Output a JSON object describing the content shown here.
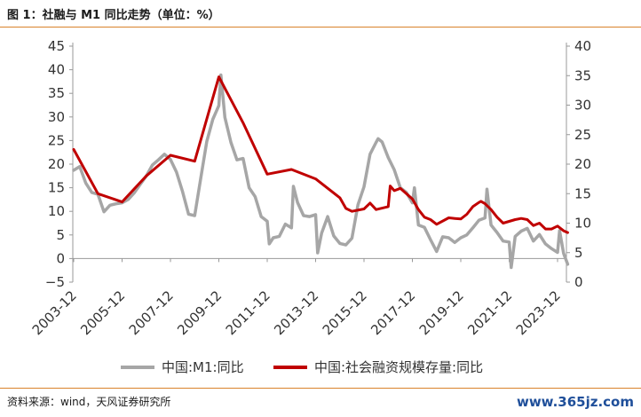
{
  "header": {
    "title": "图 1：社融与 M1 同比走势（单位：%）"
  },
  "footer": {
    "source": "资料来源：wind，天风证券研究所",
    "watermark": "www.365jz.com"
  },
  "chart_data": {
    "type": "line",
    "title": "图 1：社融与 M1 同比走势（单位：%）",
    "x_tick_labels": [
      "2003-12",
      "2005-12",
      "2007-12",
      "2009-12",
      "2011-12",
      "2013-12",
      "2015-12",
      "2017-12",
      "2019-12",
      "2021-12",
      "2023-12"
    ],
    "y_left": {
      "ylim": [
        -5,
        45
      ],
      "ticks": [
        -5,
        0,
        5,
        10,
        15,
        20,
        25,
        30,
        35,
        40,
        45
      ],
      "tick_labels": [
        "−5",
        "0",
        "5",
        "10",
        "15",
        "20",
        "25",
        "30",
        "35",
        "40",
        "45"
      ]
    },
    "y_right": {
      "ylim": [
        0,
        40
      ],
      "ticks": [
        0,
        5,
        10,
        15,
        20,
        25,
        30,
        35,
        40
      ],
      "tick_labels": [
        "0",
        "5",
        "10",
        "15",
        "20",
        "25",
        "30",
        "35",
        "40"
      ]
    },
    "legend": {
      "placement": "bottom"
    },
    "series": [
      {
        "name": "中国:M1:同比",
        "axis": "left",
        "color": "#a6a6a6",
        "points": [
          [
            "2003-12",
            18.7
          ],
          [
            "2004-03",
            19.5
          ],
          [
            "2004-06",
            16.0
          ],
          [
            "2004-09",
            14.0
          ],
          [
            "2004-12",
            13.6
          ],
          [
            "2005-03",
            9.9
          ],
          [
            "2005-06",
            11.3
          ],
          [
            "2005-09",
            11.6
          ],
          [
            "2005-12",
            11.8
          ],
          [
            "2006-03",
            12.5
          ],
          [
            "2006-06",
            13.9
          ],
          [
            "2006-09",
            15.7
          ],
          [
            "2006-12",
            17.5
          ],
          [
            "2007-03",
            19.8
          ],
          [
            "2007-06",
            20.9
          ],
          [
            "2007-09",
            22.1
          ],
          [
            "2007-12",
            21.0
          ],
          [
            "2008-03",
            18.3
          ],
          [
            "2008-06",
            14.2
          ],
          [
            "2008-09",
            9.4
          ],
          [
            "2008-12",
            9.1
          ],
          [
            "2009-03",
            17.0
          ],
          [
            "2009-06",
            24.8
          ],
          [
            "2009-09",
            29.5
          ],
          [
            "2009-12",
            32.4
          ],
          [
            "2010-01",
            38.9
          ],
          [
            "2010-03",
            29.9
          ],
          [
            "2010-06",
            24.6
          ],
          [
            "2010-09",
            20.9
          ],
          [
            "2010-12",
            21.2
          ],
          [
            "2011-03",
            15.0
          ],
          [
            "2011-06",
            13.1
          ],
          [
            "2011-09",
            8.9
          ],
          [
            "2011-12",
            7.9
          ],
          [
            "2012-01",
            3.1
          ],
          [
            "2012-03",
            4.4
          ],
          [
            "2012-06",
            4.7
          ],
          [
            "2012-09",
            7.3
          ],
          [
            "2012-12",
            6.5
          ],
          [
            "2013-01",
            15.3
          ],
          [
            "2013-03",
            11.9
          ],
          [
            "2013-06",
            9.1
          ],
          [
            "2013-09",
            8.9
          ],
          [
            "2013-12",
            9.3
          ],
          [
            "2014-01",
            1.2
          ],
          [
            "2014-03",
            5.4
          ],
          [
            "2014-06",
            8.9
          ],
          [
            "2014-09",
            4.8
          ],
          [
            "2014-12",
            3.2
          ],
          [
            "2015-03",
            2.9
          ],
          [
            "2015-06",
            4.3
          ],
          [
            "2015-09",
            11.4
          ],
          [
            "2015-12",
            15.2
          ],
          [
            "2016-03",
            22.1
          ],
          [
            "2016-06",
            24.6
          ],
          [
            "2016-07",
            25.4
          ],
          [
            "2016-09",
            24.7
          ],
          [
            "2016-12",
            21.4
          ],
          [
            "2017-03",
            18.8
          ],
          [
            "2017-06",
            15.0
          ],
          [
            "2017-09",
            14.0
          ],
          [
            "2017-12",
            11.8
          ],
          [
            "2018-01",
            15.0
          ],
          [
            "2018-03",
            7.1
          ],
          [
            "2018-06",
            6.6
          ],
          [
            "2018-09",
            4.0
          ],
          [
            "2018-12",
            1.5
          ],
          [
            "2019-03",
            4.6
          ],
          [
            "2019-06",
            4.4
          ],
          [
            "2019-09",
            3.4
          ],
          [
            "2019-12",
            4.4
          ],
          [
            "2020-03",
            5.0
          ],
          [
            "2020-06",
            6.5
          ],
          [
            "2020-09",
            8.1
          ],
          [
            "2020-12",
            8.6
          ],
          [
            "2021-01",
            14.7
          ],
          [
            "2021-03",
            7.1
          ],
          [
            "2021-06",
            5.5
          ],
          [
            "2021-09",
            3.7
          ],
          [
            "2021-12",
            3.5
          ],
          [
            "2022-01",
            -1.9
          ],
          [
            "2022-03",
            4.7
          ],
          [
            "2022-06",
            5.8
          ],
          [
            "2022-09",
            6.4
          ],
          [
            "2022-12",
            3.7
          ],
          [
            "2023-03",
            5.1
          ],
          [
            "2023-06",
            3.1
          ],
          [
            "2023-09",
            2.1
          ],
          [
            "2023-12",
            1.3
          ],
          [
            "2024-01",
            5.9
          ],
          [
            "2024-03",
            1.1
          ],
          [
            "2024-05",
            -1.2
          ]
        ]
      },
      {
        "name": "中国:社会融资规模存量:同比",
        "axis": "right",
        "color": "#c00000",
        "points": [
          [
            "2003-12",
            22.5
          ],
          [
            "2004-12",
            15.0
          ],
          [
            "2005-12",
            13.6
          ],
          [
            "2006-12",
            18.0
          ],
          [
            "2007-12",
            21.5
          ],
          [
            "2008-12",
            20.5
          ],
          [
            "2009-12",
            34.8
          ],
          [
            "2010-12",
            27.0
          ],
          [
            "2011-12",
            18.3
          ],
          [
            "2012-12",
            19.1
          ],
          [
            "2013-12",
            17.5
          ],
          [
            "2014-12",
            14.3
          ],
          [
            "2015-03",
            12.5
          ],
          [
            "2015-06",
            12.0
          ],
          [
            "2015-12",
            12.4
          ],
          [
            "2016-03",
            13.4
          ],
          [
            "2016-06",
            12.3
          ],
          [
            "2016-12",
            12.8
          ],
          [
            "2017-01",
            16.3
          ],
          [
            "2017-03",
            15.5
          ],
          [
            "2017-06",
            15.9
          ],
          [
            "2017-12",
            14.1
          ],
          [
            "2018-03",
            12.3
          ],
          [
            "2018-06",
            11.0
          ],
          [
            "2018-09",
            10.6
          ],
          [
            "2018-12",
            9.8
          ],
          [
            "2019-06",
            10.9
          ],
          [
            "2019-09",
            10.8
          ],
          [
            "2019-12",
            10.7
          ],
          [
            "2020-03",
            11.5
          ],
          [
            "2020-06",
            12.8
          ],
          [
            "2020-09",
            13.5
          ],
          [
            "2020-10",
            13.7
          ],
          [
            "2020-12",
            13.3
          ],
          [
            "2021-03",
            12.3
          ],
          [
            "2021-06",
            11.0
          ],
          [
            "2021-09",
            10.0
          ],
          [
            "2021-12",
            10.3
          ],
          [
            "2022-03",
            10.6
          ],
          [
            "2022-06",
            10.8
          ],
          [
            "2022-09",
            10.6
          ],
          [
            "2022-12",
            9.6
          ],
          [
            "2023-03",
            10.0
          ],
          [
            "2023-06",
            9.0
          ],
          [
            "2023-09",
            9.0
          ],
          [
            "2023-12",
            9.5
          ],
          [
            "2024-03",
            8.7
          ],
          [
            "2024-05",
            8.4
          ]
        ]
      }
    ]
  }
}
